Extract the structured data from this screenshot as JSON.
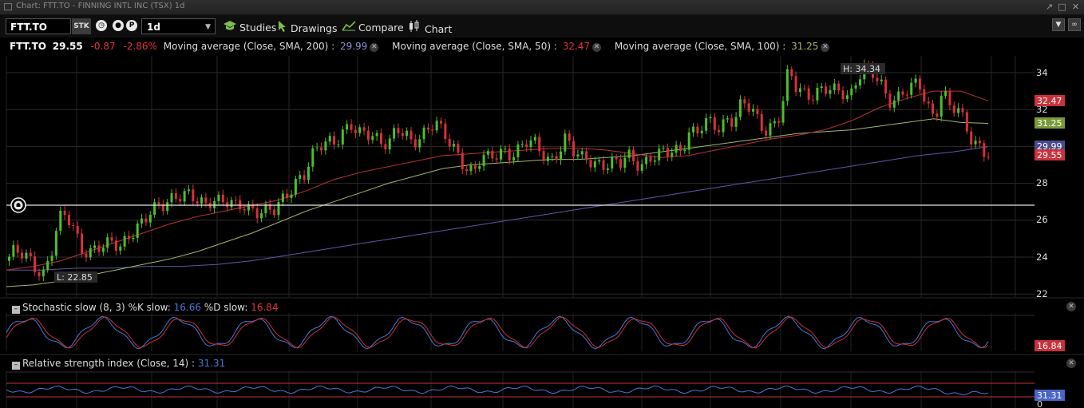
{
  "window": {
    "title": "Chart: FTT.TO - FINNING INTL INC (TSX) 1d"
  },
  "toolbar": {
    "symbol": "FTT.TO",
    "sec_type": "STK",
    "period": "1d",
    "studies": "Studies",
    "drawings": "Drawings",
    "compare": "Compare",
    "chart": "Chart"
  },
  "legend": {
    "symbol": "FTT.TO",
    "last": "29.55",
    "change": "-0.87",
    "change_pct": "-2.86%",
    "ma200_label": "Moving average (Close, SMA, 200) :",
    "ma200_value": "29.99",
    "ma50_label": "Moving average (Close, SMA, 50) :",
    "ma50_value": "32.47",
    "ma100_label": "Moving average (Close, SMA, 100) :",
    "ma100_value": "31.25"
  },
  "price_axis": {
    "ticks": [
      "34",
      "32",
      "28",
      "26",
      "24",
      "22"
    ]
  },
  "price_tags": {
    "ma50": "32.47",
    "ma100": "31.25",
    "ma200": "29.99",
    "last": "29.55"
  },
  "annotations": {
    "high": "H: 34.34",
    "low": "L: 22.85"
  },
  "stochastic": {
    "label": "Stochastic slow (8, 3) %K slow:",
    "k": "16.66",
    "d_label": "%D slow:",
    "d": "16.84",
    "tag": "16.84"
  },
  "rsi": {
    "label": "Relative strength index (Close, 14) :",
    "value": "31.31",
    "tag": "31.31",
    "axis_zero": "0"
  },
  "chart_data": {
    "type": "candlestick",
    "title": "FTT.TO - FINNING INTL INC (TSX) 1d",
    "ylim": [
      22,
      34.6
    ],
    "high": 34.34,
    "low": 22.85,
    "last": 29.55,
    "alert_level": 26.8,
    "close_path": [
      23.8,
      24.2,
      24.1,
      23.9,
      23.5,
      23.2,
      24.2,
      25.9,
      26.2,
      25.5,
      24.6,
      24.3,
      24.5,
      24.4,
      24.8,
      24.6,
      25.3,
      25.5,
      25.8,
      26.3,
      26.8,
      27.1,
      27.4,
      27.3,
      27.2,
      27.0,
      26.9,
      27.3,
      27.1,
      26.9,
      26.6,
      26.8,
      26.7,
      26.6,
      26.5,
      26.4,
      26.9,
      27.6,
      28.3,
      28.6,
      29.4,
      29.9,
      30.2,
      30.4,
      30.9,
      31.2,
      30.5,
      30.6,
      30.6,
      30.4,
      30.3,
      30.9,
      30.5,
      30.1,
      30.6,
      31.1,
      31.4,
      30.6,
      30.0,
      29.5,
      29.0,
      28.7,
      29.4,
      29.2,
      29.5,
      29.8,
      29.7,
      29.9,
      30.2,
      30.0,
      29.6,
      29.3,
      29.8,
      30.4,
      29.6,
      29.3,
      29.4,
      29.2,
      29.0,
      29.0,
      28.9,
      29.6,
      29.3,
      29.1,
      29.3,
      29.4,
      29.6,
      29.9,
      29.9,
      30.8,
      30.6,
      31.1,
      31.3,
      31.1,
      31.6,
      31.4,
      32.3,
      32.0,
      31.5,
      31.0,
      31.2,
      31.7,
      34.0,
      33.2,
      33.0,
      32.9,
      33.0,
      33.0,
      32.9,
      33.0,
      32.8,
      33.9,
      34.2,
      33.8,
      33.3,
      32.6,
      32.7,
      33.0,
      33.1,
      33.3,
      32.2,
      31.7,
      33.1,
      32.2,
      31.8,
      31.2,
      30.2,
      30.2,
      29.55
    ],
    "ma50": [
      23.3,
      23.5,
      23.8,
      24.3,
      24.8,
      25.3,
      25.8,
      26.2,
      26.5,
      26.8,
      27.1,
      27.6,
      28.2,
      28.6,
      28.9,
      29.2,
      29.5,
      29.6,
      29.7,
      29.8,
      29.9,
      29.9,
      29.8,
      29.6,
      29.4,
      29.5,
      29.8,
      30.1,
      30.4,
      30.6,
      30.9,
      31.4,
      32.1,
      32.6,
      33.0,
      33.0,
      32.47
    ],
    "ma100": [
      22.4,
      22.5,
      22.7,
      23.0,
      23.3,
      23.6,
      23.9,
      24.3,
      24.8,
      25.3,
      25.9,
      26.5,
      27.0,
      27.5,
      28.0,
      28.4,
      28.8,
      29.0,
      29.1,
      29.2,
      29.3,
      29.3,
      29.4,
      29.5,
      29.7,
      29.9,
      30.1,
      30.3,
      30.5,
      30.7,
      30.8,
      30.9,
      31.1,
      31.3,
      31.5,
      31.3,
      31.25
    ],
    "ma200": [
      23.3,
      23.3,
      23.4,
      23.4,
      23.5,
      23.5,
      23.6,
      23.8,
      24.1,
      24.4,
      24.7,
      25.0,
      25.3,
      25.6,
      25.9,
      26.2,
      26.5,
      26.8,
      27.1,
      27.4,
      27.7,
      28.0,
      28.3,
      28.6,
      28.9,
      29.2,
      29.5,
      29.7,
      29.99
    ]
  }
}
